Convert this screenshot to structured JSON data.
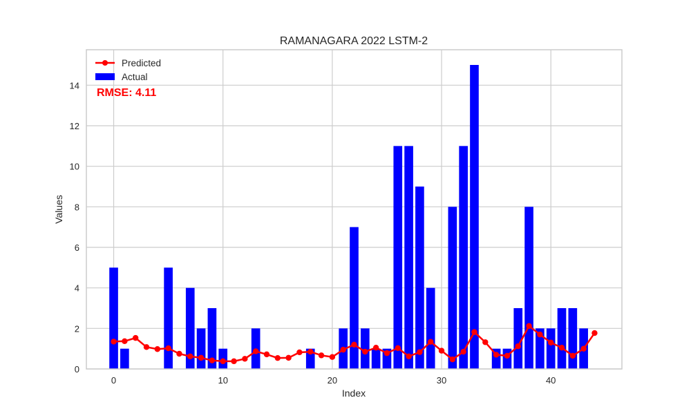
{
  "chart_data": {
    "type": "bar",
    "title": "RAMANAGARA 2022 LSTM-2",
    "xlabel": "Index",
    "ylabel": "Values",
    "xlim": [
      -2.5,
      46.5
    ],
    "ylim": [
      0,
      15.75
    ],
    "xticks": [
      0,
      10,
      20,
      30,
      40
    ],
    "yticks": [
      0,
      2,
      4,
      6,
      8,
      10,
      12,
      14
    ],
    "grid": true,
    "legend_position": "top-left",
    "annotation": "RMSE: 4.11",
    "series": [
      {
        "name": "Actual",
        "type": "bar",
        "color": "#0000ff",
        "x": [
          0,
          1,
          2,
          3,
          4,
          5,
          6,
          7,
          8,
          9,
          10,
          11,
          12,
          13,
          14,
          15,
          16,
          17,
          18,
          19,
          20,
          21,
          22,
          23,
          24,
          25,
          26,
          27,
          28,
          29,
          30,
          31,
          32,
          33,
          34,
          35,
          36,
          37,
          38,
          39,
          40,
          41,
          42,
          43,
          44
        ],
        "values": [
          5,
          1,
          0,
          0,
          0,
          5,
          0,
          4,
          2,
          3,
          1,
          0,
          0,
          2,
          0,
          0,
          0,
          0,
          1,
          0,
          0,
          2,
          7,
          2,
          1,
          1,
          11,
          11,
          9,
          4,
          0,
          8,
          11,
          15,
          0,
          1,
          1,
          3,
          8,
          2,
          2,
          3,
          3,
          2,
          0
        ]
      },
      {
        "name": "Predicted",
        "type": "line",
        "color": "#ff0000",
        "x": [
          0,
          1,
          2,
          3,
          4,
          5,
          6,
          7,
          8,
          9,
          10,
          11,
          12,
          13,
          14,
          15,
          16,
          17,
          18,
          19,
          20,
          21,
          22,
          23,
          24,
          25,
          26,
          27,
          28,
          29,
          30,
          31,
          32,
          33,
          34,
          35,
          36,
          37,
          38,
          39,
          40,
          41,
          42,
          43,
          44
        ],
        "values": [
          1.35,
          1.37,
          1.53,
          1.08,
          0.98,
          1.02,
          0.75,
          0.62,
          0.55,
          0.42,
          0.38,
          0.38,
          0.5,
          0.87,
          0.72,
          0.54,
          0.55,
          0.82,
          0.85,
          0.67,
          0.59,
          0.95,
          1.2,
          0.85,
          1.05,
          0.78,
          1.03,
          0.62,
          0.83,
          1.34,
          0.9,
          0.47,
          0.85,
          1.82,
          1.32,
          0.7,
          0.65,
          1.12,
          2.12,
          1.7,
          1.3,
          1.05,
          0.65,
          1.0,
          1.77
        ]
      }
    ]
  }
}
